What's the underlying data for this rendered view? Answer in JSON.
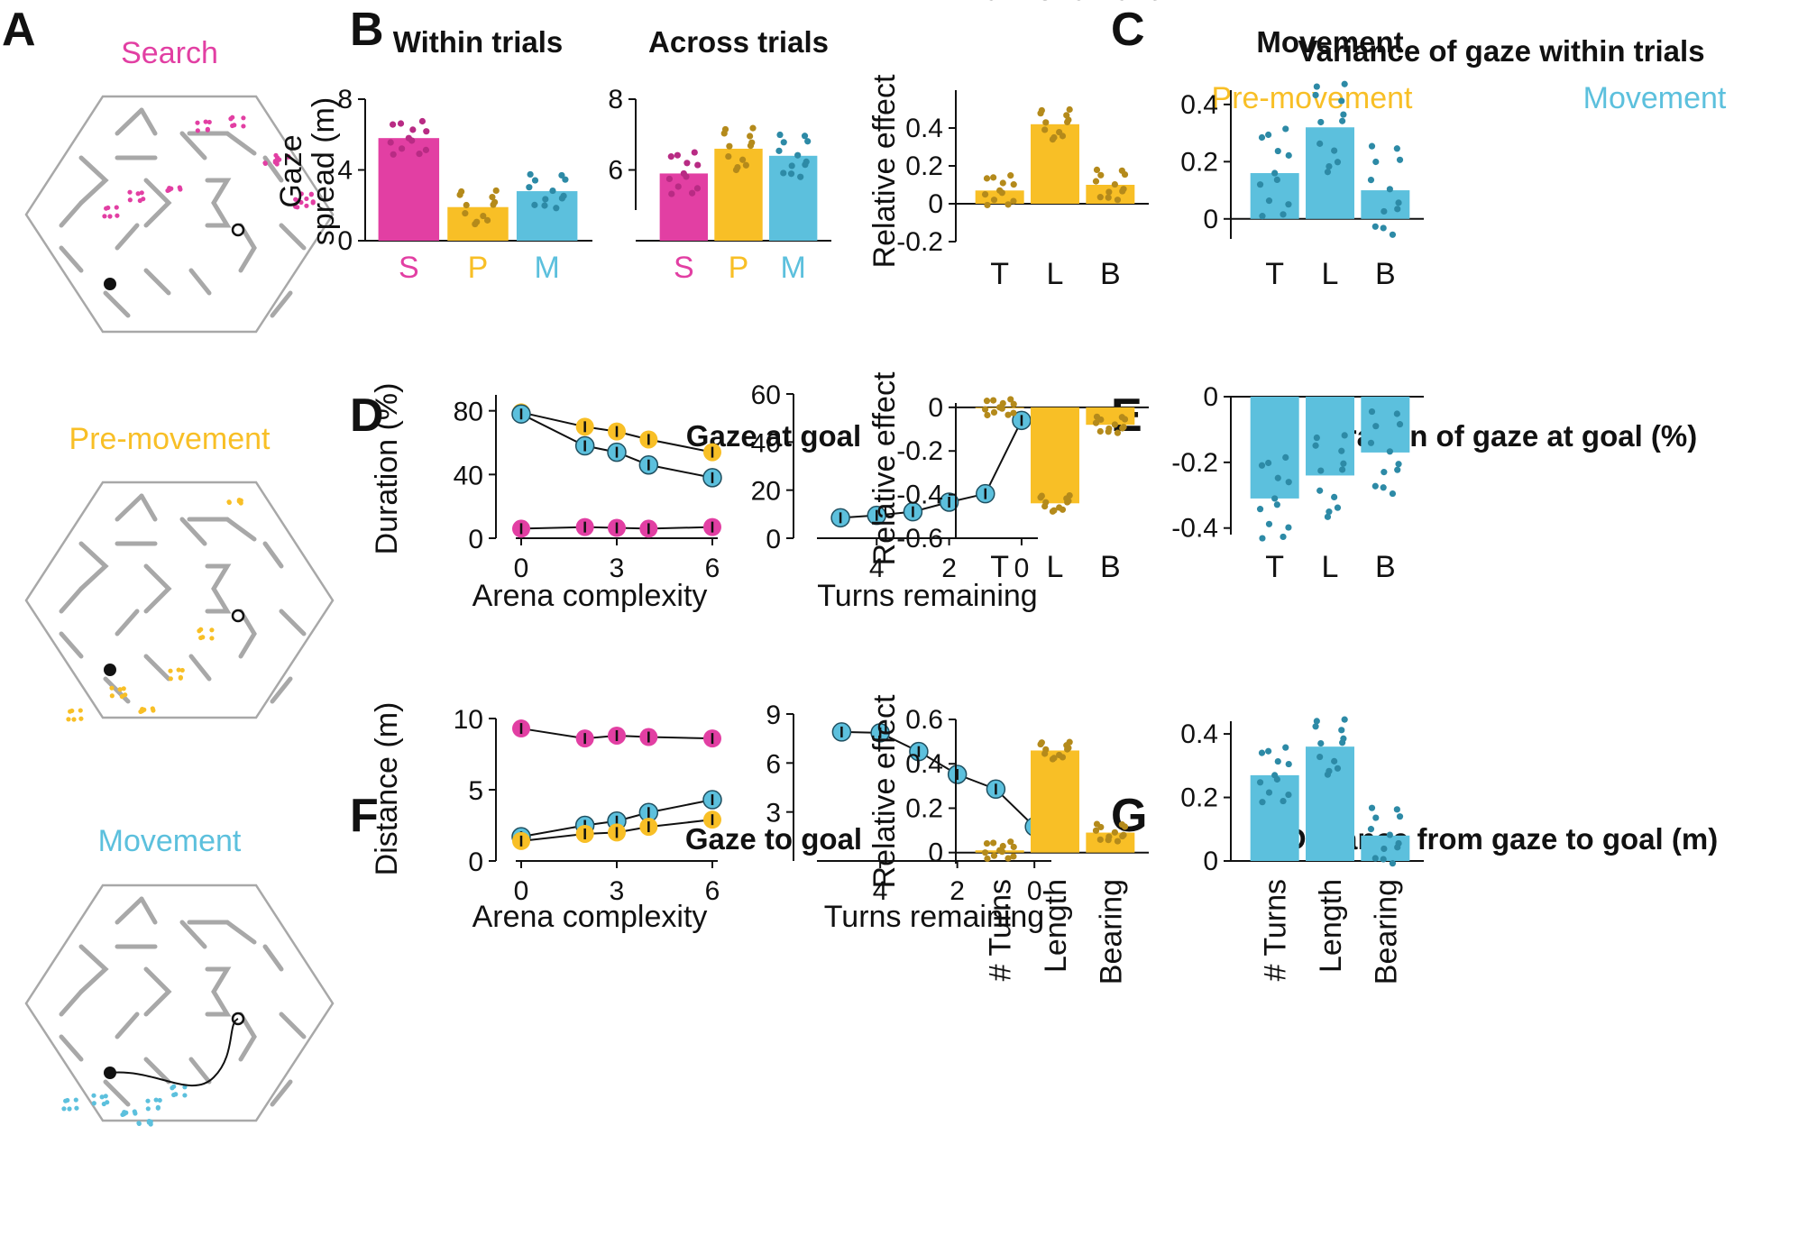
{
  "colors": {
    "search": "#e23fa3",
    "premovement": "#f8bf26",
    "movement": "#5cc0dd",
    "premovement_dots": "#b48a1b",
    "movement_dots": "#2d8aa6",
    "search_dots": "#b82b84",
    "maze": "#a8a8a8"
  },
  "panels": {
    "A": {
      "label": "A",
      "maze_titles": [
        "Search",
        "Pre-movement",
        "Movement"
      ]
    },
    "B": {
      "label": "B"
    },
    "C": {
      "label": "C",
      "title": "Variance of gaze within trials",
      "sub_left": "Pre-movement",
      "sub_right": "Movement"
    },
    "D": {
      "label": "D",
      "title": "Gaze at goal"
    },
    "E": {
      "label": "E",
      "title": "Duration of gaze at goal (%)"
    },
    "F": {
      "label": "F",
      "title": "Gaze to goal"
    },
    "G": {
      "label": "G",
      "title": "Distance from gaze to goal (m)"
    }
  },
  "chart_data": [
    {
      "id": "B1",
      "type": "bar",
      "title": "Within trials",
      "ylabel": "Gaze\nspread (m)",
      "categories": [
        "S",
        "P",
        "M"
      ],
      "values": [
        5.8,
        1.9,
        2.8
      ],
      "ylim": [
        0,
        8
      ],
      "yticks": [
        0,
        4,
        8
      ]
    },
    {
      "id": "B2",
      "type": "bar",
      "title": "Across trials",
      "categories": [
        "S",
        "P",
        "M"
      ],
      "values": [
        5.9,
        6.6,
        6.4
      ],
      "ylim": [
        4,
        8
      ],
      "yticks": [
        6,
        8
      ]
    },
    {
      "id": "C1",
      "type": "bar",
      "title": "Pre-movement",
      "ylabel": "Relative effect",
      "categories": [
        "T",
        "L",
        "B"
      ],
      "values": [
        0.07,
        0.42,
        0.1
      ],
      "ylim": [
        -0.2,
        0.6
      ],
      "yticks": [
        -0.2,
        0,
        0.2,
        0.4
      ]
    },
    {
      "id": "C2",
      "type": "bar",
      "title": "Movement",
      "categories": [
        "T",
        "L",
        "B"
      ],
      "values": [
        0.16,
        0.32,
        0.1
      ],
      "ylim": [
        -0.07,
        0.45
      ],
      "yticks": [
        0,
        0.2,
        0.4
      ]
    },
    {
      "id": "D1",
      "type": "line",
      "xlabel": "Arena complexity",
      "ylabel": "Duration (%)",
      "xticks": [
        0,
        3,
        6
      ],
      "yticks": [
        0,
        40,
        80
      ],
      "xlim": [
        0,
        6
      ],
      "ylim": [
        0,
        90
      ],
      "series": [
        {
          "color": "search",
          "x": [
            0,
            2,
            3,
            4,
            6
          ],
          "y": [
            6,
            7,
            6.5,
            6,
            7
          ]
        },
        {
          "color": "premovement",
          "x": [
            0,
            2,
            3,
            4,
            6
          ],
          "y": [
            79,
            70,
            67,
            62,
            54
          ]
        },
        {
          "color": "movement",
          "x": [
            0,
            2,
            3,
            4,
            6
          ],
          "y": [
            78,
            58,
            54,
            46,
            38
          ]
        }
      ]
    },
    {
      "id": "D2",
      "type": "line",
      "xlabel": "Turns remaining",
      "xticks": [
        4,
        2,
        0
      ],
      "yticks": [
        0,
        20,
        40,
        60
      ],
      "xlim": [
        5.5,
        -0.3
      ],
      "ylim": [
        0,
        60
      ],
      "series": [
        {
          "color": "movement",
          "x": [
            5,
            4,
            3,
            2,
            1,
            0
          ],
          "y": [
            8.5,
            9.5,
            11,
            15,
            18.5,
            49
          ]
        }
      ]
    },
    {
      "id": "E1",
      "type": "bar",
      "ylabel": "Relative effect",
      "categories": [
        "T",
        "L",
        "B"
      ],
      "values": [
        0,
        -0.44,
        -0.08
      ],
      "ylim": [
        -0.6,
        0.02
      ],
      "yticks": [
        0,
        -0.2,
        -0.4,
        -0.6
      ]
    },
    {
      "id": "E2",
      "type": "bar",
      "categories": [
        "T",
        "L",
        "B"
      ],
      "values": [
        -0.31,
        -0.24,
        -0.17
      ],
      "ylim": [
        -0.42,
        0
      ],
      "yticks": [
        0,
        -0.2,
        -0.4
      ]
    },
    {
      "id": "F1",
      "type": "line",
      "xlabel": "Arena complexity",
      "ylabel": "Distance (m)",
      "xticks": [
        0,
        3,
        6
      ],
      "yticks": [
        0,
        5,
        10
      ],
      "xlim": [
        0,
        6
      ],
      "ylim": [
        0,
        10
      ],
      "series": [
        {
          "color": "search",
          "x": [
            0,
            2,
            3,
            4,
            6
          ],
          "y": [
            9.3,
            8.6,
            8.8,
            8.7,
            8.6
          ]
        },
        {
          "color": "movement",
          "x": [
            0,
            2,
            3,
            4,
            6
          ],
          "y": [
            1.7,
            2.5,
            2.8,
            3.4,
            4.3
          ]
        },
        {
          "color": "premovement",
          "x": [
            0,
            2,
            3,
            4,
            6
          ],
          "y": [
            1.4,
            1.9,
            2.0,
            2.4,
            2.9
          ]
        }
      ]
    },
    {
      "id": "F2",
      "type": "line",
      "xlabel": "Turns remaining",
      "xticks": [
        4,
        2,
        0
      ],
      "yticks": [
        3,
        6,
        9
      ],
      "xlim": [
        5.5,
        -0.3
      ],
      "ylim": [
        0,
        9
      ],
      "series": [
        {
          "color": "movement",
          "x": [
            5,
            4,
            3,
            2,
            1,
            0
          ],
          "y": [
            7.9,
            7.85,
            6.7,
            5.3,
            4.4,
            2.1
          ]
        }
      ]
    },
    {
      "id": "G1",
      "type": "bar",
      "ylabel": "Relative effect",
      "categories": [
        "# Turns",
        "Length",
        "Bearing"
      ],
      "values": [
        0.01,
        0.46,
        0.09
      ],
      "ylim": [
        -0.05,
        0.6
      ],
      "yticks": [
        0,
        0.2,
        0.4,
        0.6
      ]
    },
    {
      "id": "G2",
      "type": "bar",
      "categories": [
        "# Turns",
        "Length",
        "Bearing"
      ],
      "values": [
        0.27,
        0.36,
        0.08
      ],
      "ylim": [
        0,
        0.44
      ],
      "yticks": [
        0,
        0.2,
        0.4
      ]
    }
  ]
}
